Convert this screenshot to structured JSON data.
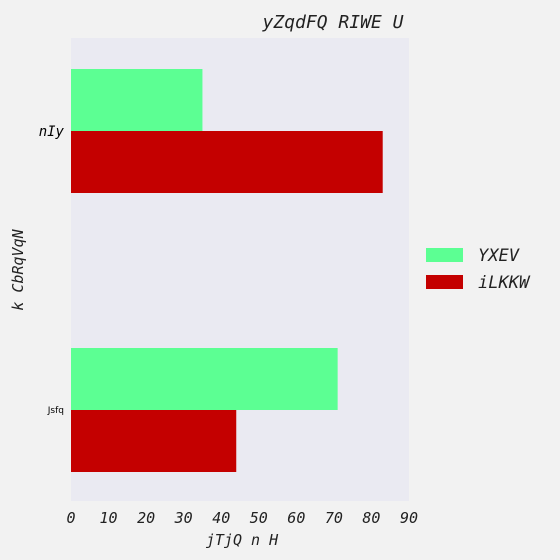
{
  "chart_data": {
    "type": "bar",
    "orientation": "horizontal",
    "title": "yZqdFQ RIWE U",
    "xlabel": "jTjQ n H",
    "ylabel": "k CbRqVqN",
    "categories": [
      "nIy",
      "Jsfq"
    ],
    "series": [
      {
        "name": "YXEV",
        "color": "#5cff93",
        "values": [
          35,
          71
        ]
      },
      {
        "name": "iLKKW",
        "color": "#c40000",
        "values": [
          83,
          44
        ]
      }
    ],
    "xlim": [
      0,
      90
    ],
    "xticks": [
      "0",
      "10",
      "20",
      "30",
      "40",
      "50",
      "60",
      "70",
      "80",
      "90"
    ],
    "grid": false,
    "legend_position": "right",
    "plot_background": "#eaeaf2"
  }
}
